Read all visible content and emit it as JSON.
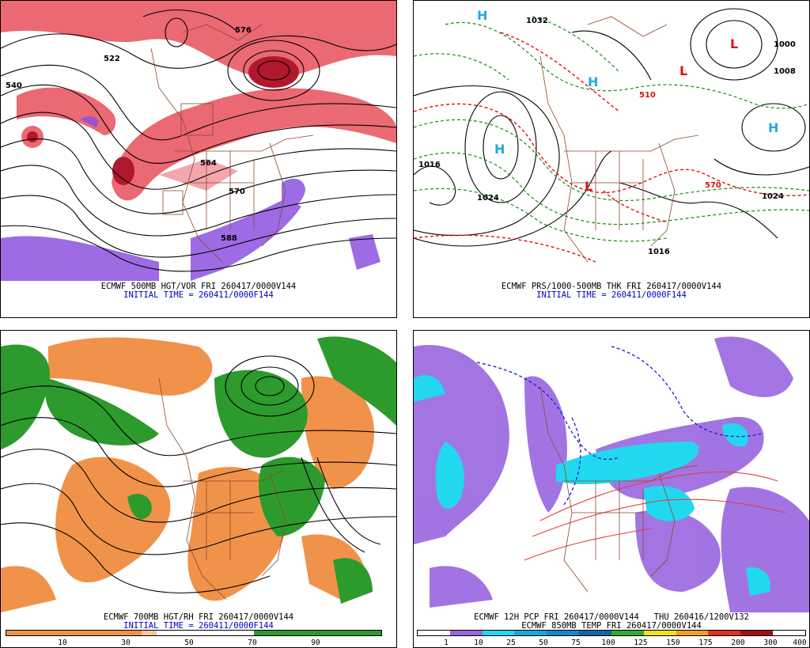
{
  "panels": {
    "top_left": {
      "caption": "ECMWF 500MB HGT/VOR FRI 260417/0000V144",
      "subcaption": "INITIAL TIME = 260411/0000F144",
      "labels": [
        "576",
        "522",
        "540",
        "564",
        "570",
        "588"
      ]
    },
    "top_right": {
      "caption": "ECMWF PRS/1000-500MB THK FRI 260417/0000V144",
      "subcaption": "INITIAL TIME = 260411/0000F144",
      "labels": [
        "1032",
        "1008",
        "1016",
        "1024",
        "1000",
        "510",
        "570",
        "H",
        "L"
      ]
    },
    "bottom_left": {
      "caption": "ECMWF 700MB HGT/RH FRI 260417/0000V144",
      "subcaption": "INITIAL TIME = 260411/0000F144",
      "colorbar_ticks": [
        "10",
        "30",
        "50",
        "70",
        "90"
      ]
    },
    "bottom_right": {
      "caption": "ECMWF 12H PCP FRI 260417/0000V144   THU 260416/1200V132",
      "subcaption": "ECMWF 850MB TEMP FRI 260417/0000V144",
      "colorbar_ticks": [
        "1",
        "10",
        "25",
        "50",
        "75",
        "100",
        "125",
        "150",
        "175",
        "200",
        "300",
        "400"
      ]
    }
  },
  "colors": {
    "vorticity": "#d9223a",
    "low_vorticity": "#8c52e0",
    "rh_dry": "#f0924a",
    "rh_moist": "#2d9a2d",
    "pcp_light": "#9966e0",
    "pcp_cyan": "#22d8ee",
    "thickness_cold": "#1a8a1a",
    "thickness_warm": "#e01010",
    "borders": "#8b4a2b",
    "high_label": "#22a9e8",
    "low_label": "#e01010"
  }
}
